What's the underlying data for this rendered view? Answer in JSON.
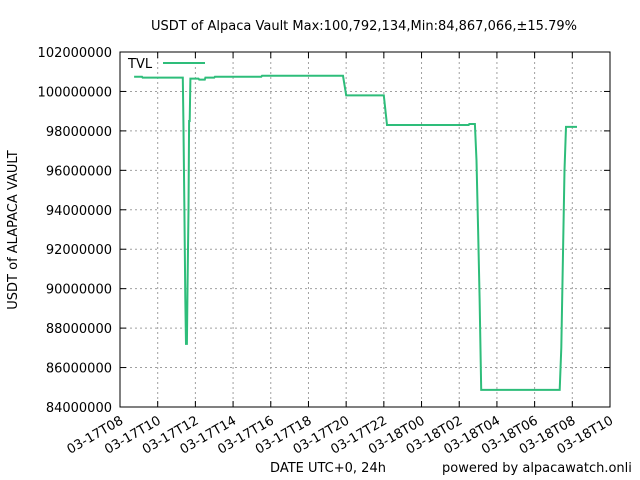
{
  "chart_data": {
    "type": "line",
    "title": "USDT of Alpaca Vault Max:100,792,134,Min:84,867,066,±15.79%",
    "xlabel": "DATE UTC+0, 24h",
    "ylabel": "USDT of ALAPACA VAULT",
    "footer": "powered by alpacawatch.onli",
    "ylim": [
      84000000,
      102000000
    ],
    "xlim": [
      "03-17T08:00",
      "03-18T10:00"
    ],
    "y_ticks": [
      "84000000",
      "86000000",
      "88000000",
      "90000000",
      "92000000",
      "94000000",
      "96000000",
      "98000000",
      "100000000",
      "102000000"
    ],
    "x_ticks": [
      "03-17T08",
      "03-17T10",
      "03-17T12",
      "03-17T14",
      "03-17T16",
      "03-17T18",
      "03-17T20",
      "03-17T22",
      "03-18T00",
      "03-18T02",
      "03-18T04",
      "03-18T06",
      "03-18T08",
      "03-18T10"
    ],
    "grid": true,
    "legend_position": "top-left",
    "series": [
      {
        "name": "TVL",
        "color": "#2ebd7a",
        "points": [
          [
            "03-17T08:45",
            100750000
          ],
          [
            "03-17T09:10",
            100750000
          ],
          [
            "03-17T09:12",
            100700000
          ],
          [
            "03-17T11:20",
            100700000
          ],
          [
            "03-17T11:22",
            98500000
          ],
          [
            "03-17T11:25",
            94000000
          ],
          [
            "03-17T11:28",
            89500000
          ],
          [
            "03-17T11:30",
            87200000
          ],
          [
            "03-17T11:33",
            87200000
          ],
          [
            "03-17T11:35",
            90000000
          ],
          [
            "03-17T11:38",
            94000000
          ],
          [
            "03-17T11:40",
            98500000
          ],
          [
            "03-17T11:42",
            98500000
          ],
          [
            "03-17T11:44",
            100650000
          ],
          [
            "03-17T12:10",
            100650000
          ],
          [
            "03-17T12:12",
            100600000
          ],
          [
            "03-17T12:30",
            100600000
          ],
          [
            "03-17T12:32",
            100700000
          ],
          [
            "03-17T13:00",
            100700000
          ],
          [
            "03-17T13:02",
            100750000
          ],
          [
            "03-17T15:30",
            100750000
          ],
          [
            "03-17T15:32",
            100792134
          ],
          [
            "03-17T19:50",
            100792134
          ],
          [
            "03-17T20:00",
            99800000
          ],
          [
            "03-17T22:00",
            99800000
          ],
          [
            "03-17T22:10",
            98300000
          ],
          [
            "03-18T02:30",
            98300000
          ],
          [
            "03-18T02:32",
            98350000
          ],
          [
            "03-18T02:50",
            98350000
          ],
          [
            "03-18T02:55",
            96500000
          ],
          [
            "03-18T03:00",
            93000000
          ],
          [
            "03-18T03:05",
            89500000
          ],
          [
            "03-18T03:10",
            84867066
          ],
          [
            "03-18T07:20",
            84867066
          ],
          [
            "03-18T07:25",
            87000000
          ],
          [
            "03-18T07:30",
            91500000
          ],
          [
            "03-18T07:35",
            96000000
          ],
          [
            "03-18T07:40",
            98200000
          ],
          [
            "03-18T08:15",
            98200000
          ]
        ]
      }
    ]
  }
}
